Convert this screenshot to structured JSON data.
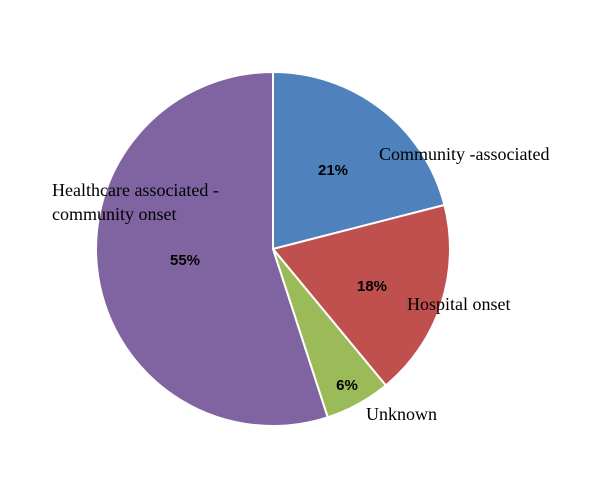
{
  "chart_data": {
    "type": "pie",
    "title": "",
    "start_angle_deg": 0,
    "direction": "clockwise",
    "legend": "none",
    "slices": [
      {
        "label": "Community -associated",
        "label_lines": [
          "Community -associated"
        ],
        "value": 21,
        "pct_text": "21%",
        "color": "#4F81BD"
      },
      {
        "label": "Hospital onset",
        "label_lines": [
          "Hospital onset"
        ],
        "value": 18,
        "pct_text": "18%",
        "color": "#C0504D"
      },
      {
        "label": "Unknown",
        "label_lines": [
          "Unknown"
        ],
        "value": 6,
        "pct_text": "6%",
        "color": "#9BBB59"
      },
      {
        "label": "Healthcare associated - community onset",
        "label_lines": [
          "Healthcare associated -",
          "community onset"
        ],
        "value": 55,
        "pct_text": "55%",
        "color": "#8064A2"
      }
    ],
    "slice_border_color": "#FFFFFF"
  }
}
